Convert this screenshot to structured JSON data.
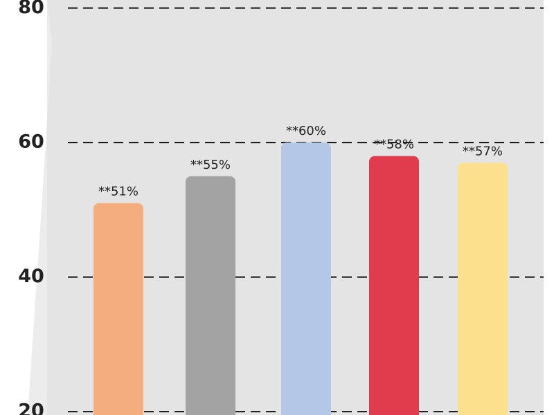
{
  "chart_data": {
    "type": "bar",
    "values": [
      51,
      55,
      60,
      58,
      57
    ],
    "value_labels": [
      "**51%",
      "**55%",
      "**60%",
      "**58%",
      "**57%"
    ],
    "colors": [
      "#f4ad7e",
      "#a3a3a3",
      "#b4c7e7",
      "#e03c4e",
      "#fde08e"
    ],
    "ylim": [
      19.5,
      81.2
    ],
    "yticks": [
      20,
      40,
      60,
      80
    ],
    "grid": true
  }
}
